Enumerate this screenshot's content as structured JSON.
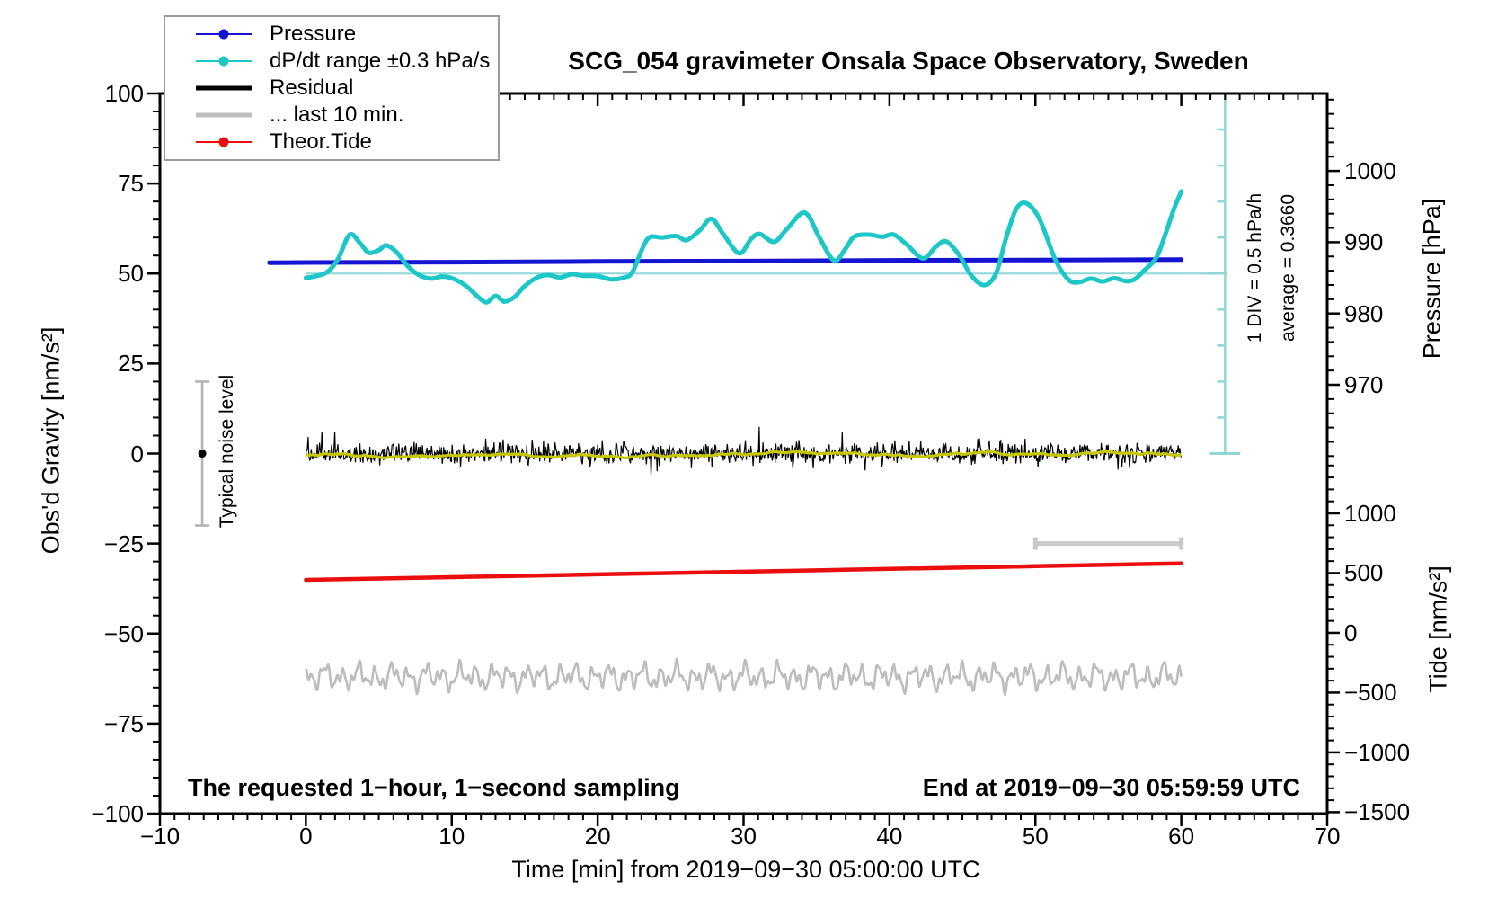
{
  "notes": {
    "bottom_left": "The requested 1−hour, 1−second sampling",
    "bottom_right": "End at 2019−09−30 05:59:59 UTC",
    "noise_label": "Typical noise level",
    "div_scale": "1 DIV = 0.5 hPa/h",
    "average": "average = 0.3660"
  },
  "colors": {
    "pressure": "#1414d2",
    "dpdt": "#1ec7c7",
    "dpdt_ref": "#8fd6d6",
    "residual": "#000000",
    "residual_smooth": "#c8c800",
    "last10": "#bdbdbd",
    "tide": "#ea0e0e",
    "noise_bar": "#b4b4b4",
    "span_bar": "#c9c9c9",
    "axis": "#000000"
  },
  "legend": {
    "items": [
      {
        "label": "Pressure",
        "color": "#1414d2",
        "lw": 2,
        "marker": true
      },
      {
        "label": "dP/dt range ±0.3 hPa/s",
        "color": "#1ec7c7",
        "lw": 2,
        "marker": true
      },
      {
        "label": "Residual",
        "color": "#000000",
        "lw": 5,
        "marker": false
      },
      {
        "label": "... last 10 min.",
        "color": "#bdbdbd",
        "lw": 5,
        "marker": false
      },
      {
        "label": "Theor.Tide",
        "color": "#ea0e0e",
        "lw": 2,
        "marker": true
      }
    ]
  },
  "chart_data": {
    "type": "line",
    "title": "SCG_054 gravimeter Onsala Space Observatory, Sweden",
    "xlabel": "Time [min] from 2019−09−30 05:00:00 UTC",
    "ylabel": "Obs'd Gravity [nm/s²]",
    "ylabel_right_top": "Pressure [hPa]",
    "ylabel_right_bottom": "Tide [nm/s²]",
    "x_range_min": [
      -10,
      70
    ],
    "ylim_gravity": [
      -100,
      100
    ],
    "grid": false,
    "legend_position": "top-left",
    "x_ticks": [
      {
        "v": -10,
        "label": "−10"
      },
      {
        "v": 0,
        "label": "0"
      },
      {
        "v": 10,
        "label": "10"
      },
      {
        "v": 20,
        "label": "20"
      },
      {
        "v": 30,
        "label": "30"
      },
      {
        "v": 40,
        "label": "40"
      },
      {
        "v": 50,
        "label": "50"
      },
      {
        "v": 60,
        "label": "60"
      },
      {
        "v": 70,
        "label": "70"
      }
    ],
    "x_minor_step_min": 1,
    "y_ticks_gravity": [
      {
        "v": 100,
        "label": "100"
      },
      {
        "v": 75,
        "label": "75"
      },
      {
        "v": 50,
        "label": "50"
      },
      {
        "v": 25,
        "label": "25"
      },
      {
        "v": 0,
        "label": "0"
      },
      {
        "v": -25,
        "label": "−25"
      },
      {
        "v": -50,
        "label": "−50"
      },
      {
        "v": -75,
        "label": "−75"
      },
      {
        "v": -100,
        "label": "−100"
      }
    ],
    "y_minor_step_gravity": 5,
    "pressure_axis": {
      "ticks": [
        {
          "v": 1000,
          "label": "1000"
        },
        {
          "v": 990,
          "label": "990"
        },
        {
          "v": 980,
          "label": "980"
        },
        {
          "v": 970,
          "label": "970"
        }
      ],
      "minor_step_hPa": 2,
      "gravity_of_1000hPa": 78.5,
      "gravity_per_hPa": 1.98
    },
    "tide_axis": {
      "ticks": [
        {
          "v": 1000,
          "label": "1000"
        },
        {
          "v": 500,
          "label": "500"
        },
        {
          "v": 0,
          "label": "0"
        },
        {
          "v": -500,
          "label": "−500"
        },
        {
          "v": -1000,
          "label": "−1000"
        },
        {
          "v": -1500,
          "label": "−1500"
        }
      ],
      "minor_step": 100,
      "gravity_of_zero_tide": -49.8,
      "gravity_per_unit": 0.0332
    },
    "series": {
      "pressure_hPa": [
        [
          -2.5,
          987.12
        ],
        [
          0,
          987.15
        ],
        [
          10,
          987.2
        ],
        [
          20,
          987.3
        ],
        [
          30,
          987.35
        ],
        [
          40,
          987.45
        ],
        [
          50,
          987.5
        ],
        [
          60,
          987.55
        ]
      ],
      "dpdt_hPa_per_h": [
        [
          0,
          -0.06
        ],
        [
          0.7,
          -0.035
        ],
        [
          1.5,
          0.025
        ],
        [
          2.2,
          0.2
        ],
        [
          3,
          0.54
        ],
        [
          3.7,
          0.425
        ],
        [
          4.3,
          0.29
        ],
        [
          5,
          0.325
        ],
        [
          5.5,
          0.39
        ],
        [
          6.2,
          0.3
        ],
        [
          7,
          0.1
        ],
        [
          7.8,
          -0.025
        ],
        [
          8.6,
          -0.07
        ],
        [
          9.4,
          -0.04
        ],
        [
          10.2,
          -0.08
        ],
        [
          11,
          -0.175
        ],
        [
          11.8,
          -0.325
        ],
        [
          12.4,
          -0.4
        ],
        [
          13,
          -0.31
        ],
        [
          13.6,
          -0.39
        ],
        [
          14.3,
          -0.325
        ],
        [
          15,
          -0.175
        ],
        [
          15.8,
          -0.06
        ],
        [
          16.6,
          -0.02
        ],
        [
          17.4,
          -0.055
        ],
        [
          18.2,
          -0.01
        ],
        [
          19,
          -0.03
        ],
        [
          20,
          -0.035
        ],
        [
          20.9,
          -0.08
        ],
        [
          21.8,
          -0.055
        ],
        [
          22.4,
          0.025
        ],
        [
          23.4,
          0.475
        ],
        [
          24.4,
          0.5
        ],
        [
          25.4,
          0.52
        ],
        [
          26.1,
          0.465
        ],
        [
          27,
          0.6
        ],
        [
          27.8,
          0.76
        ],
        [
          28.6,
          0.55
        ],
        [
          29.7,
          0.28
        ],
        [
          30.5,
          0.475
        ],
        [
          31.1,
          0.55
        ],
        [
          32.1,
          0.44
        ],
        [
          33,
          0.625
        ],
        [
          34.2,
          0.845
        ],
        [
          35.2,
          0.5
        ],
        [
          36.2,
          0.18
        ],
        [
          37,
          0.35
        ],
        [
          37.6,
          0.515
        ],
        [
          38.6,
          0.54
        ],
        [
          39.5,
          0.51
        ],
        [
          40.3,
          0.54
        ],
        [
          41.2,
          0.4
        ],
        [
          42.3,
          0.21
        ],
        [
          43.2,
          0.375
        ],
        [
          43.9,
          0.445
        ],
        [
          44.8,
          0.25
        ],
        [
          45.6,
          -0.025
        ],
        [
          46.5,
          -0.16
        ],
        [
          47.3,
          0
        ],
        [
          48,
          0.5
        ],
        [
          48.7,
          0.9
        ],
        [
          49.4,
          0.975
        ],
        [
          50.3,
          0.75
        ],
        [
          51.4,
          0.175
        ],
        [
          52.3,
          -0.09
        ],
        [
          53,
          -0.12
        ],
        [
          53.8,
          -0.07
        ],
        [
          54.6,
          -0.11
        ],
        [
          55.4,
          -0.065
        ],
        [
          56.2,
          -0.105
        ],
        [
          56.8,
          -0.08
        ],
        [
          57.5,
          0.05
        ],
        [
          58.3,
          0.225
        ],
        [
          59,
          0.6
        ],
        [
          59.5,
          0.9
        ],
        [
          60,
          1.14
        ]
      ],
      "dpdt_plot": {
        "zero_at_gravity": 50,
        "gravity_per_hPa_per_h": 20
      },
      "theor_tide": [
        [
          0,
          443
        ],
        [
          10,
          466
        ],
        [
          20,
          489
        ],
        [
          30,
          512
        ],
        [
          40,
          535
        ],
        [
          50,
          558
        ],
        [
          60,
          581
        ]
      ],
      "residual": {
        "mean": 0,
        "sigma": 1.5,
        "spike_max": 8.8,
        "n": 1150,
        "seed": 20190930,
        "t_range": [
          0,
          60
        ]
      },
      "residual_smooth": {
        "amplitude": 1.5,
        "n": 301,
        "seed": 77
      },
      "last_10_min": {
        "mean_gravity": -62,
        "components": [
          [
            2.1,
            1.15,
            0.7
          ],
          [
            1.4,
            0.53,
            2.1
          ],
          [
            1.0,
            2.4,
            4.4
          ],
          [
            0.7,
            0.31,
            1.2
          ]
        ],
        "n": 900,
        "t_range": [
          0,
          60
        ]
      }
    },
    "annotations": {
      "noise_bar": {
        "t": -7.1,
        "center_gravity": 0,
        "half_range": 20
      },
      "last10_span_bar": {
        "t_start": 50,
        "t_end": 60,
        "gravity": -25
      },
      "dpdt_ruler": {
        "t": 63,
        "top_gravity": 100,
        "bottom_gravity": 0,
        "ref_gravity": 50,
        "tick_step_gravity": 10
      },
      "dpdt_ref_line": {
        "gravity": 50,
        "t_start": 0
      }
    }
  }
}
